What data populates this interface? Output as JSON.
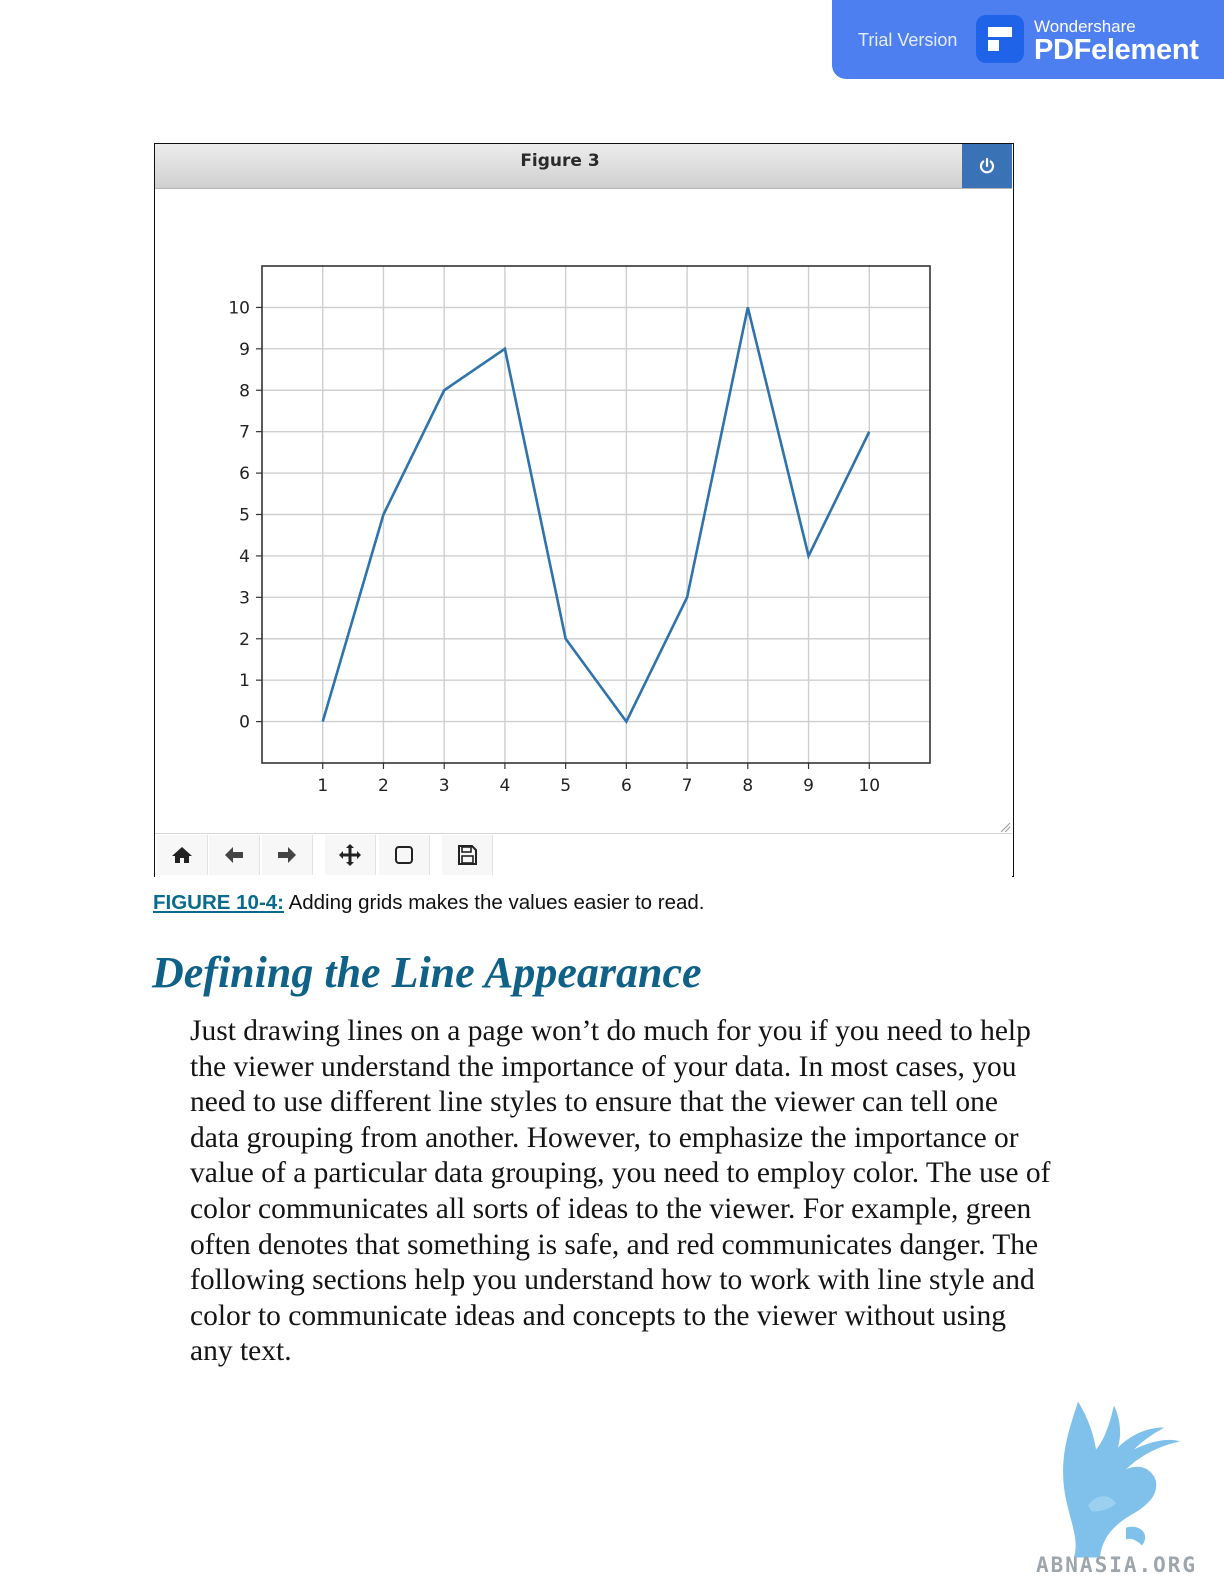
{
  "banner": {
    "trial_label": "Trial Version",
    "brand_top": "Wondershare",
    "brand_main": "PDFelement",
    "color": "#4d7ff0",
    "icon": "pdfelement-logo-icon"
  },
  "figure_window": {
    "title": "Figure 3",
    "close_icon": "power-icon",
    "toolbar_icons": [
      "home-icon",
      "back-arrow-icon",
      "forward-arrow-icon",
      "pan-icon",
      "zoom-rect-icon",
      "save-icon"
    ]
  },
  "chart_data": {
    "type": "line",
    "x": [
      1,
      2,
      3,
      4,
      5,
      6,
      7,
      8,
      9,
      10
    ],
    "series": [
      {
        "values": [
          0,
          5,
          8,
          9,
          2,
          0,
          3,
          10,
          4,
          7
        ],
        "color": "#2e73ab"
      }
    ],
    "x_ticks": [
      "1",
      "2",
      "3",
      "4",
      "5",
      "6",
      "7",
      "8",
      "9",
      "10"
    ],
    "y_ticks": [
      "0",
      "1",
      "2",
      "3",
      "4",
      "5",
      "6",
      "7",
      "8",
      "9",
      "10"
    ],
    "xlim": [
      0,
      11
    ],
    "ylim": [
      -1,
      11
    ],
    "grid": true,
    "title": "",
    "xlabel": "",
    "ylabel": ""
  },
  "caption": {
    "label": "FIGURE 10-4:",
    "text": " Adding grids makes the values easier to read."
  },
  "section": {
    "heading": "Defining the Line Appearance",
    "lines": [
      "Just drawing lines on a page won’t do much for you if you need to help",
      "the viewer understand the importance of your data. In most cases, you",
      "need to use different line styles to ensure that the viewer can tell one",
      "data grouping from another. However, to emphasize the importance or",
      "value of a particular data grouping, you need to employ color. The use of",
      "color communicates all sorts of ideas to the viewer. For example, green",
      "often denotes that something is safe, and red communicates danger. The",
      "following sections help you understand how to work with line style and",
      "color to communicate ideas and concepts to the viewer without using",
      "any text."
    ]
  },
  "watermark": {
    "text": "ABNASIA.ORG",
    "color": "#7fc1ea"
  }
}
